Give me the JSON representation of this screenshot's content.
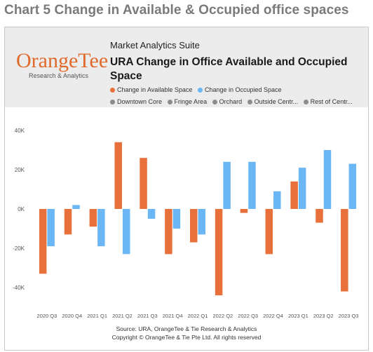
{
  "header": {
    "outer_title": "Chart 5 Change in Available & Occupied office spaces",
    "suite": "Market Analytics Suite",
    "logo_main": "OrangeTee",
    "logo_sub": "Research & Analytics"
  },
  "legend": {
    "series": [
      {
        "label": "Change in Available Space",
        "color": "#e8703a"
      },
      {
        "label": "Change in Occupied Space",
        "color": "#6bb6f5"
      }
    ],
    "regions": [
      {
        "label": "Downtown Core",
        "color": "#8c8c8c"
      },
      {
        "label": "Fringe Area",
        "color": "#8c8c8c"
      },
      {
        "label": "Orchard",
        "color": "#8c8c8c"
      },
      {
        "label": "Outside Centr...",
        "color": "#8c8c8c"
      },
      {
        "label": "Rest of Centr...",
        "color": "#8c8c8c"
      }
    ]
  },
  "chart_data": {
    "type": "bar",
    "title": "URA Change in Office Available and Occupied Space",
    "categories": [
      "2020 Q3",
      "2020 Q4",
      "2021 Q1",
      "2021 Q2",
      "2021 Q3",
      "2021 Q4",
      "2022 Q1",
      "2022 Q2",
      "2022 Q3",
      "2022 Q4",
      "2023 Q1",
      "2023 Q2",
      "2023 Q3"
    ],
    "series": [
      {
        "name": "Change in Available Space",
        "color": "#e8703a",
        "values": [
          -33000,
          -13000,
          -9000,
          34000,
          26000,
          -23000,
          -17000,
          -44000,
          -2000,
          -23000,
          14000,
          -7000,
          -42000
        ]
      },
      {
        "name": "Change in Occupied Space",
        "color": "#6bb6f5",
        "values": [
          -19000,
          2000,
          -19000,
          -23000,
          -5000,
          -10000,
          -13000,
          24000,
          24000,
          9000,
          21000,
          30000,
          23000
        ]
      }
    ],
    "yticks": [
      -40000,
      -20000,
      0,
      20000,
      40000
    ],
    "ytick_labels": [
      "-40K",
      "-20K",
      "0K",
      "20K",
      "40K"
    ],
    "ylim": [
      -45000,
      40000
    ],
    "grid": false
  },
  "footer": {
    "source": "Source: URA, OrangeTee & Tie Research & Analytics",
    "copyright": "Copyright © OrangeTee & Tie Pte Ltd. All rights reserved"
  }
}
